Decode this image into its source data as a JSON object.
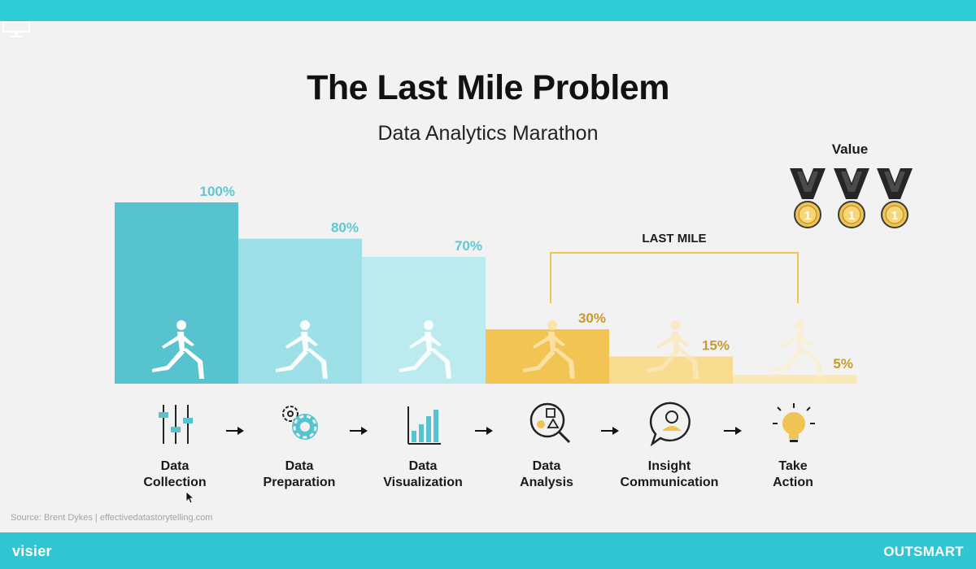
{
  "title": "The Last Mile Problem",
  "subtitle": "Data Analytics Marathon",
  "value_label": "Value",
  "last_mile_label": "LAST MILE",
  "source": "Source: Brent Dykes | effectivedatastorytelling.com",
  "brand_left": "visier",
  "brand_right": "OUTSMART",
  "colors": {
    "teal_dark": "#56c3cf",
    "teal_mid": "#9ee0e8",
    "teal_light": "#bcebef",
    "gold_dark": "#f2c453",
    "gold_mid": "#f8dc90",
    "gold_light": "#fae9b8",
    "teal_text": "#5cc8d3",
    "gold_text": "#c89a2c",
    "bracket": "#f0c453"
  },
  "chart_data": {
    "type": "bar",
    "categories": [
      "Data Collection",
      "Data Preparation",
      "Data Visualization",
      "Data Analysis",
      "Insight Communication",
      "Take Action"
    ],
    "values": [
      100,
      80,
      70,
      30,
      15,
      5
    ],
    "data_labels": [
      "100%",
      "80%",
      "70%",
      "30%",
      "15%",
      "5%"
    ],
    "title": "The Last Mile Problem",
    "subtitle": "Data Analytics Marathon",
    "xlabel": "",
    "ylabel": "",
    "ylim": [
      0,
      100
    ],
    "grid": false,
    "annotations": [
      "LAST MILE",
      "Value"
    ]
  },
  "steps": [
    {
      "line1": "Data",
      "line2": "Collection",
      "icon": "sliders-icon"
    },
    {
      "line1": "Data",
      "line2": "Preparation",
      "icon": "gears-icon"
    },
    {
      "line1": "Data",
      "line2": "Visualization",
      "icon": "bar-chart-icon"
    },
    {
      "line1": "Data",
      "line2": "Analysis",
      "icon": "magnifier-shapes-icon"
    },
    {
      "line1": "Insight",
      "line2": "Communication",
      "icon": "speech-person-icon"
    },
    {
      "line1": "Take",
      "line2": "Action",
      "icon": "lightbulb-icon"
    }
  ],
  "medals": [
    {
      "digit": "1"
    },
    {
      "digit": "1"
    },
    {
      "digit": "1"
    }
  ]
}
